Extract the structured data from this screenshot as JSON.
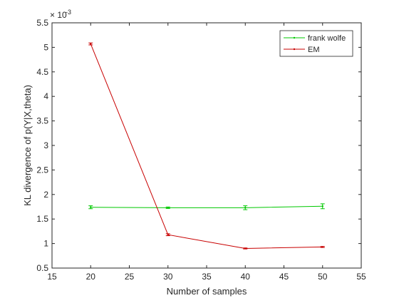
{
  "chart_data": {
    "type": "line",
    "xlabel": "Number of samples",
    "ylabel": "KL divergence of p(Y|X,theta)",
    "y_multiplier_label": "× 10",
    "y_multiplier_exponent": "-3",
    "xlim": [
      15,
      55
    ],
    "ylim": [
      0.5,
      5.5
    ],
    "x_ticks": [
      15,
      20,
      25,
      30,
      35,
      40,
      45,
      50,
      55
    ],
    "y_ticks": [
      0.5,
      1,
      1.5,
      2,
      2.5,
      3,
      3.5,
      4,
      4.5,
      5,
      5.5
    ],
    "x_tick_labels": [
      "15",
      "20",
      "25",
      "30",
      "35",
      "40",
      "45",
      "50",
      "55"
    ],
    "y_tick_labels": [
      "0.5",
      "1",
      "1.5",
      "2",
      "2.5",
      "3",
      "3.5",
      "4",
      "4.5",
      "5",
      "5.5"
    ],
    "grid": false,
    "legend_position": "top-right",
    "series": [
      {
        "name": "frank wolfe",
        "color": "#00c800",
        "x": [
          20,
          30,
          40,
          50
        ],
        "values": [
          1.74,
          1.73,
          1.73,
          1.76
        ],
        "errors": [
          0.03,
          0.015,
          0.04,
          0.05
        ]
      },
      {
        "name": "EM",
        "color": "#c80000",
        "x": [
          20,
          30,
          40,
          50
        ],
        "values": [
          5.07,
          1.18,
          0.9,
          0.93
        ],
        "errors": [
          0.02,
          0.02,
          0.01,
          0.01
        ]
      }
    ]
  }
}
